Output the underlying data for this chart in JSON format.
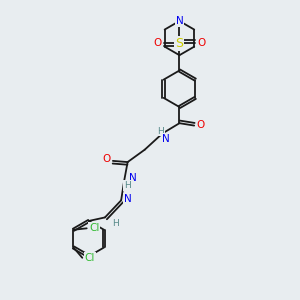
{
  "background_color": "#e8edf0",
  "bond_color": "#1a1a1a",
  "atom_colors": {
    "N": "#0000ee",
    "O": "#ee0000",
    "S": "#cccc00",
    "Cl": "#33bb33",
    "C": "#1a1a1a",
    "H": "#558888"
  },
  "font_size": 7.5
}
